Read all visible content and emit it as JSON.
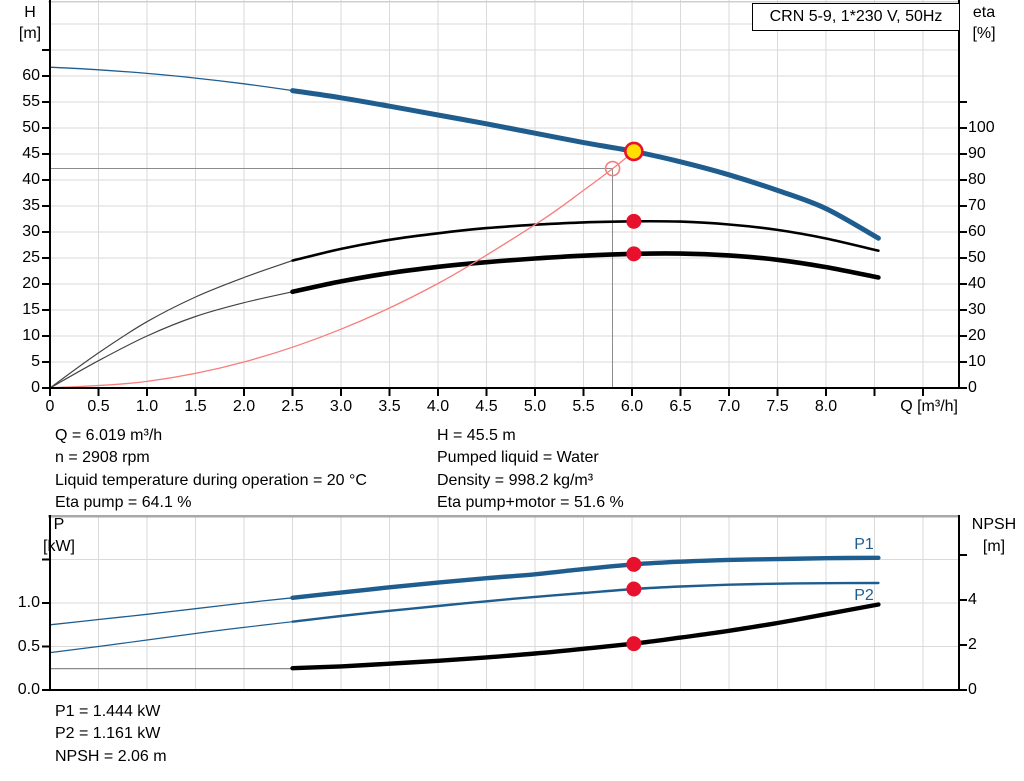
{
  "colors": {
    "curve_blue": "#1f5d8f",
    "eta_black": "#000000",
    "thin_gray": "#444444",
    "system_red": "#f97d7d",
    "marker_red": "#e8112d",
    "duty_yellow": "#ffdf00",
    "grid": "#dadada",
    "guide": "#8c8c8c",
    "npsh_thin": "#8a8a8a"
  },
  "labels": {
    "h_axis": [
      "H",
      "[m]"
    ],
    "eta_axis": [
      "eta",
      "[%]"
    ],
    "q_axis": "Q [m³/h]",
    "p_axis": [
      "P",
      "[kW]"
    ],
    "npsh_axis": [
      "NPSH",
      "[m]"
    ],
    "p1_series": "P1",
    "p2_series": "P2"
  },
  "info_top": {
    "left": [
      "Q = 6.019 m³/h",
      "n = 2908 rpm",
      "Liquid temperature during operation = 20 °C",
      "Eta pump = 64.1 %"
    ],
    "right": [
      "H = 45.5 m",
      "Pumped liquid = Water",
      "Density = 998.2 kg/m³",
      "Eta pump+motor = 51.6 %"
    ]
  },
  "info_bottom": [
    "P1 = 1.444 kW",
    "P2 = 1.161 kW",
    "NPSH = 2.06 m"
  ],
  "chart_data": [
    {
      "type": "line",
      "title": "CRN 5-9, 1*230 V, 50Hz",
      "xlabel": "Q [m³/h]",
      "ylabel_left": "H [m]",
      "ylabel_right": "eta [%]",
      "xlim": [
        0,
        9.37
      ],
      "ylim_left": [
        0,
        74.6
      ],
      "ylim_right": [
        0,
        149.2
      ],
      "grid": true,
      "x_ticks": [
        {
          "v": 0,
          "label": "0"
        },
        {
          "v": 0.5,
          "label": "0.5"
        },
        {
          "v": 1,
          "label": "1.0"
        },
        {
          "v": 1.5,
          "label": "1.5"
        },
        {
          "v": 2,
          "label": "2.0"
        },
        {
          "v": 2.5,
          "label": "2.5"
        },
        {
          "v": 3,
          "label": "3.0"
        },
        {
          "v": 3.5,
          "label": "3.5"
        },
        {
          "v": 4,
          "label": "4.0"
        },
        {
          "v": 4.5,
          "label": "4.5"
        },
        {
          "v": 5,
          "label": "5.0"
        },
        {
          "v": 5.5,
          "label": "5.5"
        },
        {
          "v": 6,
          "label": "6.0"
        },
        {
          "v": 6.5,
          "label": "6.5"
        },
        {
          "v": 7,
          "label": "7.0"
        },
        {
          "v": 7.5,
          "label": "7.5"
        },
        {
          "v": 8,
          "label": "8.0"
        },
        {
          "v": 8.5,
          "label": null
        },
        {
          "v": 9,
          "label": null
        }
      ],
      "left_ticks": [
        {
          "v": 0,
          "label": "0"
        },
        {
          "v": 5,
          "label": "5"
        },
        {
          "v": 10,
          "label": "10"
        },
        {
          "v": 15,
          "label": "15"
        },
        {
          "v": 20,
          "label": "20"
        },
        {
          "v": 25,
          "label": "25"
        },
        {
          "v": 30,
          "label": "30"
        },
        {
          "v": 35,
          "label": "35"
        },
        {
          "v": 40,
          "label": "40"
        },
        {
          "v": 45,
          "label": "45"
        },
        {
          "v": 50,
          "label": "50"
        },
        {
          "v": 55,
          "label": "55"
        },
        {
          "v": 60,
          "label": "60"
        },
        {
          "v": 65,
          "label": null
        }
      ],
      "right_ticks": [
        {
          "v": 0,
          "label": "0"
        },
        {
          "v": 10,
          "label": "10"
        },
        {
          "v": 20,
          "label": "20"
        },
        {
          "v": 30,
          "label": "30"
        },
        {
          "v": 40,
          "label": "40"
        },
        {
          "v": 50,
          "label": "50"
        },
        {
          "v": 60,
          "label": "60"
        },
        {
          "v": 70,
          "label": "70"
        },
        {
          "v": 80,
          "label": "80"
        },
        {
          "v": 90,
          "label": "90"
        },
        {
          "v": 100,
          "label": "100"
        },
        {
          "v": 110,
          "label": null
        }
      ],
      "series": [
        {
          "name": "head-curve-extrapolated",
          "axis": "left",
          "color": "#1f5d8f",
          "width": 1.3,
          "points": [
            [
              0,
              61.7
            ],
            [
              0.5,
              61.2
            ],
            [
              1,
              60.5
            ],
            [
              1.5,
              59.6
            ],
            [
              2,
              58.5
            ],
            [
              2.5,
              57.2
            ]
          ]
        },
        {
          "name": "head-curve",
          "axis": "left",
          "color": "#1f5d8f",
          "width": 5,
          "points": [
            [
              2.5,
              57.2
            ],
            [
              3,
              55.8
            ],
            [
              3.5,
              54.2
            ],
            [
              4,
              52.5
            ],
            [
              4.5,
              50.8
            ],
            [
              5,
              49
            ],
            [
              5.5,
              47.2
            ],
            [
              6.019,
              45.5
            ],
            [
              6.5,
              43.5
            ],
            [
              7,
              41
            ],
            [
              7.5,
              38
            ],
            [
              8,
              34.5
            ],
            [
              8.54,
              28.8
            ]
          ]
        },
        {
          "name": "eta-pump-extrapolated",
          "axis": "right",
          "color": "#444444",
          "width": 1.2,
          "points": [
            [
              0,
              0
            ],
            [
              0.5,
              13.5
            ],
            [
              1,
              25.5
            ],
            [
              1.5,
              35
            ],
            [
              2,
              42.5
            ],
            [
              2.5,
              49
            ]
          ]
        },
        {
          "name": "eta-pump-curve",
          "axis": "right",
          "color": "#000000",
          "width": 2.6,
          "points": [
            [
              2.5,
              49
            ],
            [
              3,
              53.5
            ],
            [
              3.5,
              57
            ],
            [
              4,
              59.5
            ],
            [
              4.5,
              61.5
            ],
            [
              5,
              62.8
            ],
            [
              5.5,
              63.7
            ],
            [
              6.019,
              64.1
            ],
            [
              6.5,
              64
            ],
            [
              7,
              62.9
            ],
            [
              7.5,
              60.8
            ],
            [
              8,
              57.5
            ],
            [
              8.54,
              52.8
            ]
          ]
        },
        {
          "name": "eta-pump-motor-extrapolated",
          "axis": "right",
          "color": "#444444",
          "width": 1.2,
          "points": [
            [
              0,
              0
            ],
            [
              0.5,
              10.5
            ],
            [
              1,
              20
            ],
            [
              1.5,
              27.5
            ],
            [
              2,
              32.8
            ],
            [
              2.5,
              37
            ]
          ]
        },
        {
          "name": "eta-pump-motor-curve",
          "axis": "right",
          "color": "#000000",
          "width": 4.6,
          "points": [
            [
              2.5,
              37
            ],
            [
              3,
              41
            ],
            [
              3.5,
              44.2
            ],
            [
              4,
              46.6
            ],
            [
              4.5,
              48.4
            ],
            [
              5,
              49.8
            ],
            [
              5.5,
              50.9
            ],
            [
              6.019,
              51.6
            ],
            [
              6.5,
              51.7
            ],
            [
              7,
              51
            ],
            [
              7.5,
              49.3
            ],
            [
              8,
              46.5
            ],
            [
              8.54,
              42.5
            ]
          ]
        },
        {
          "name": "system-curve",
          "axis": "left",
          "color": "#f97d7d",
          "width": 1.3,
          "points": [
            [
              0,
              0
            ],
            [
              1,
              1.26
            ],
            [
              2,
              5
            ],
            [
              3,
              11.3
            ],
            [
              4,
              20.1
            ],
            [
              5,
              31.4
            ],
            [
              5.5,
              38
            ],
            [
              5.8,
              42.2
            ],
            [
              6.019,
              45.5
            ]
          ]
        }
      ],
      "markers": [
        {
          "name": "duty-point",
          "axis": "left",
          "q": 6.019,
          "v": 45.5,
          "style": "yellow-dot"
        },
        {
          "name": "rated-duty-point",
          "axis": "left",
          "q": 5.8,
          "v": 42.2,
          "style": "open-circle"
        },
        {
          "name": "eta-pump-duty-point",
          "axis": "right",
          "q": 6.019,
          "v": 64.1,
          "style": "red-dot"
        },
        {
          "name": "eta-pump-motor-duty-point",
          "axis": "right",
          "q": 6.019,
          "v": 51.6,
          "style": "red-dot"
        }
      ],
      "crosshair": {
        "q": 5.8,
        "h": 42.2
      }
    },
    {
      "type": "line",
      "title": "",
      "xlabel": "",
      "ylabel_left": "P [kW]",
      "ylabel_right": "NPSH [m]",
      "xlim": [
        0,
        9.37
      ],
      "ylim_left": [
        0,
        2.01
      ],
      "ylim_right": [
        0,
        7.78
      ],
      "grid": true,
      "x_ticks": [],
      "left_ticks": [
        {
          "v": 0,
          "label": "0.0"
        },
        {
          "v": 0.5,
          "label": "0.5"
        },
        {
          "v": 1,
          "label": "1.0"
        },
        {
          "v": 1.5,
          "label": null
        }
      ],
      "right_ticks": [
        {
          "v": 0,
          "label": "0"
        },
        {
          "v": 2,
          "label": "2"
        },
        {
          "v": 4,
          "label": "4"
        },
        {
          "v": 6,
          "label": null
        }
      ],
      "series": [
        {
          "name": "p1-extrapolated",
          "axis": "left",
          "color": "#1f5d8f",
          "width": 1.3,
          "points": [
            [
              0,
              0.75
            ],
            [
              0.5,
              0.81
            ],
            [
              1,
              0.87
            ],
            [
              1.5,
              0.935
            ],
            [
              2,
              1.0
            ],
            [
              2.5,
              1.06
            ]
          ]
        },
        {
          "name": "p1-curve",
          "axis": "left",
          "color": "#1f5d8f",
          "width": 4.4,
          "points": [
            [
              2.5,
              1.06
            ],
            [
              3,
              1.12
            ],
            [
              3.5,
              1.18
            ],
            [
              4,
              1.235
            ],
            [
              4.5,
              1.285
            ],
            [
              5,
              1.33
            ],
            [
              5.5,
              1.39
            ],
            [
              6.019,
              1.444
            ],
            [
              6.5,
              1.475
            ],
            [
              7,
              1.495
            ],
            [
              7.5,
              1.505
            ],
            [
              8,
              1.515
            ],
            [
              8.54,
              1.52
            ]
          ]
        },
        {
          "name": "p2-extrapolated",
          "axis": "left",
          "color": "#1f5d8f",
          "width": 1.2,
          "points": [
            [
              0,
              0.43
            ],
            [
              0.5,
              0.5
            ],
            [
              1,
              0.575
            ],
            [
              1.5,
              0.65
            ],
            [
              2,
              0.72
            ],
            [
              2.5,
              0.785
            ]
          ]
        },
        {
          "name": "p2-curve",
          "axis": "left",
          "color": "#1f5d8f",
          "width": 2.4,
          "points": [
            [
              2.5,
              0.785
            ],
            [
              3,
              0.85
            ],
            [
              3.5,
              0.91
            ],
            [
              4,
              0.965
            ],
            [
              4.5,
              1.02
            ],
            [
              5,
              1.07
            ],
            [
              5.5,
              1.115
            ],
            [
              6.019,
              1.161
            ],
            [
              6.5,
              1.19
            ],
            [
              7,
              1.21
            ],
            [
              7.5,
              1.222
            ],
            [
              8,
              1.228
            ],
            [
              8.54,
              1.23
            ]
          ]
        },
        {
          "name": "npsh-extrapolated",
          "axis": "right",
          "color": "#8a8a8a",
          "width": 1.2,
          "points": [
            [
              0,
              0.95
            ],
            [
              1,
              0.95
            ],
            [
              2.5,
              0.95
            ]
          ]
        },
        {
          "name": "npsh-curve",
          "axis": "right",
          "color": "#000000",
          "width": 4.4,
          "points": [
            [
              2.5,
              0.97
            ],
            [
              3,
              1.05
            ],
            [
              3.5,
              1.17
            ],
            [
              4,
              1.3
            ],
            [
              4.5,
              1.45
            ],
            [
              5,
              1.62
            ],
            [
              5.5,
              1.83
            ],
            [
              6.019,
              2.06
            ],
            [
              6.5,
              2.33
            ],
            [
              7,
              2.63
            ],
            [
              7.5,
              2.98
            ],
            [
              8,
              3.37
            ],
            [
              8.54,
              3.8
            ]
          ]
        }
      ],
      "markers": [
        {
          "name": "p1-duty-point",
          "axis": "left",
          "q": 6.019,
          "v": 1.444,
          "style": "red-dot"
        },
        {
          "name": "p2-duty-point",
          "axis": "left",
          "q": 6.019,
          "v": 1.161,
          "style": "red-dot"
        },
        {
          "name": "npsh-duty-point",
          "axis": "right",
          "q": 6.019,
          "v": 2.06,
          "style": "red-dot"
        }
      ]
    }
  ]
}
